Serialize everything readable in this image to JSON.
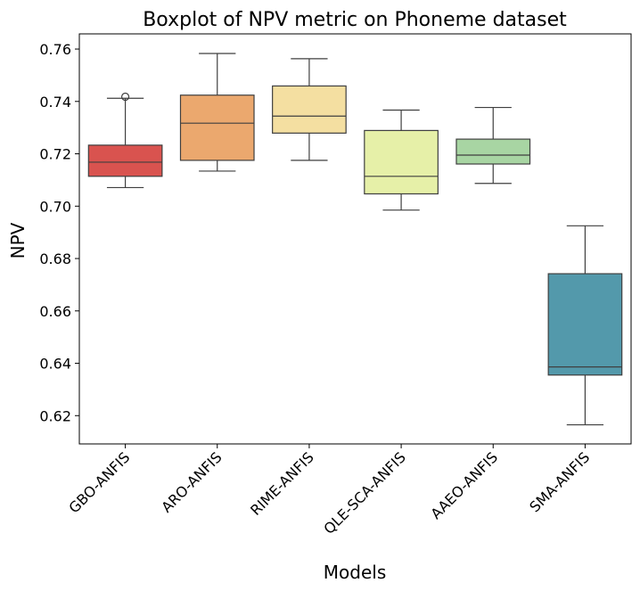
{
  "chart_data": {
    "type": "box",
    "title": "Boxplot of NPV metric on Phoneme dataset",
    "xlabel": "Models",
    "ylabel": "NPV",
    "ylim": [
      0.6092,
      0.7658
    ],
    "yticks": [
      0.62,
      0.64,
      0.66,
      0.68,
      0.7,
      0.72,
      0.74,
      0.76
    ],
    "ytick_labels": [
      "0.62",
      "0.64",
      "0.66",
      "0.68",
      "0.70",
      "0.72",
      "0.74",
      "0.76"
    ],
    "grid": false,
    "categories": [
      "GBO-ANFIS",
      "ARO-ANFIS",
      "RIME-ANFIS",
      "QLE-SCA-ANFIS",
      "AAEO-ANFIS",
      "SMA-ANFIS"
    ],
    "boxes": [
      {
        "category": "GBO-ANFIS",
        "whisker_low": 0.7071,
        "q1": 0.7114,
        "median": 0.7168,
        "q3": 0.7233,
        "whisker_high": 0.7412,
        "outliers": [
          0.7418
        ],
        "color": "#d9534f"
      },
      {
        "category": "ARO-ANFIS",
        "whisker_low": 0.7134,
        "q1": 0.7175,
        "median": 0.7317,
        "q3": 0.7424,
        "whisker_high": 0.7583,
        "outliers": [],
        "color": "#eba86e"
      },
      {
        "category": "RIME-ANFIS",
        "whisker_low": 0.7175,
        "q1": 0.7279,
        "median": 0.7344,
        "q3": 0.7459,
        "whisker_high": 0.7563,
        "outliers": [],
        "color": "#f4dfa1"
      },
      {
        "category": "QLE-SCA-ANFIS",
        "whisker_low": 0.6985,
        "q1": 0.7047,
        "median": 0.7114,
        "q3": 0.7289,
        "whisker_high": 0.7367,
        "outliers": [],
        "color": "#e6f0a8"
      },
      {
        "category": "AAEO-ANFIS",
        "whisker_low": 0.7087,
        "q1": 0.7161,
        "median": 0.7195,
        "q3": 0.7256,
        "whisker_high": 0.7377,
        "outliers": [],
        "color": "#a8d5a3"
      },
      {
        "category": "SMA-ANFIS",
        "whisker_low": 0.6165,
        "q1": 0.6355,
        "median": 0.6386,
        "q3": 0.6742,
        "whisker_high": 0.6925,
        "outliers": [],
        "color": "#5399ab"
      }
    ]
  }
}
